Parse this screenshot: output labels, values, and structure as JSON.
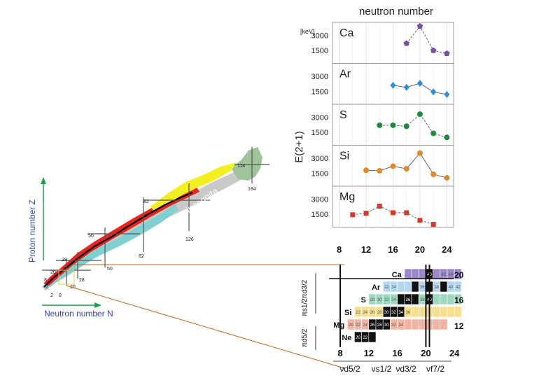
{
  "nuclide_chart": {
    "x_axis_label": "Neutron number N",
    "y_axis_label": "Proton number Z",
    "region_label": "terra incognita",
    "magic_numbers": [
      "2",
      "8",
      "20",
      "28",
      "50",
      "82",
      "126",
      "184",
      "114"
    ],
    "colors": {
      "stable": "#000000",
      "red_region": "#e8251d",
      "yellow_region": "#f4ef20",
      "cyan_region": "#7fd1d1",
      "gray_region": "#bfbfbf",
      "green_region": "#9fc49a",
      "blue_outline": "#7887c0",
      "axis_arrow": "#1aa04a",
      "zoom_line": "#c0651a"
    }
  },
  "chart_data": {
    "type": "scatter",
    "title": "neutron number",
    "ylabel": "E(2+1)",
    "yunit": "[keV]",
    "x_ticks": [
      8,
      12,
      16,
      20,
      24
    ],
    "xlim": [
      7,
      25
    ],
    "ylim": [
      500,
      4000
    ],
    "y_ticks": [
      "3000",
      "1500"
    ],
    "series": [
      {
        "name": "Ca",
        "marker": "pentagon",
        "color": "#7a4ea3",
        "dashed": true,
        "x": [
          18,
          20,
          22,
          24
        ],
        "y": [
          2200,
          3900,
          1500,
          1200
        ]
      },
      {
        "name": "Ar",
        "marker": "diamond",
        "color": "#2a8fd6",
        "dashed": false,
        "x": [
          16,
          18,
          20,
          22,
          24
        ],
        "y": [
          2100,
          1900,
          2300,
          1450,
          1200
        ]
      },
      {
        "name": "S",
        "marker": "circle",
        "color": "#1e8b3e",
        "dashed": true,
        "x": [
          14,
          16,
          18,
          20,
          22,
          24
        ],
        "y": [
          2200,
          2200,
          2100,
          3300,
          1400,
          1000
        ]
      },
      {
        "name": "Si",
        "marker": "circle",
        "color": "#e08a2a",
        "dashed": false,
        "x": [
          12,
          14,
          16,
          18,
          20,
          22,
          24
        ],
        "y": [
          1800,
          1750,
          2200,
          1950,
          3500,
          1400,
          1050
        ]
      },
      {
        "name": "Mg",
        "marker": "square",
        "color": "#d63a26",
        "dashed": true,
        "x": [
          10,
          12,
          14,
          16,
          18,
          20,
          22
        ],
        "y": [
          1450,
          1600,
          2300,
          1650,
          1650,
          900,
          500
        ]
      }
    ]
  },
  "zoom": {
    "x_ticks": [
      "8",
      "12",
      "16",
      "20",
      "24"
    ],
    "right_labels": [
      "20",
      "16",
      "12"
    ],
    "left_pi_label": "πs1/2πd3/2",
    "left_pi2_label": "πd5/2",
    "nu_labels": [
      "νd5/2",
      "νs1/2",
      "νd3/2",
      "νf7/2"
    ],
    "rows": [
      {
        "el": "Ca",
        "color": "#9b87c9",
        "start": 17,
        "end": 24,
        "cells": [
          "",
          "",
          "",
          "40",
          "",
          "42",
          "44"
        ],
        "stable": [
          20
        ]
      },
      {
        "el": "Ar",
        "color": "#b4d6ef",
        "start": 14,
        "end": 24,
        "cells": [
          "32",
          "34",
          "",
          "",
          "",
          "36",
          "",
          "38",
          "",
          "40",
          "42"
        ],
        "stable": [
          18,
          20,
          22
        ]
      },
      {
        "el": "S",
        "color": "#9ed8bf",
        "start": 12,
        "end": 24,
        "cells": [
          "28",
          "30",
          "32",
          "34",
          "",
          "36",
          "",
          "38",
          "40"
        ],
        "stable": [
          16,
          17,
          18,
          20
        ]
      },
      {
        "el": "Si",
        "color": "#f6df8e",
        "start": 10,
        "end": 24,
        "cells": [
          "22",
          "24",
          "26",
          "28",
          "30",
          "32",
          "34",
          "36"
        ],
        "stable": [
          14,
          15,
          16
        ]
      },
      {
        "el": "Mg",
        "color": "#f3b3a2",
        "start": 9,
        "end": 22,
        "cells": [
          "20",
          "22",
          "24",
          "26",
          "28",
          "30",
          "32",
          "34"
        ],
        "stable": [
          12,
          13,
          14
        ]
      },
      {
        "el": "Ne",
        "color": "#ffffff",
        "start": 10,
        "end": 12,
        "cells": [
          "20",
          "22"
        ],
        "stable": [
          10,
          11,
          12
        ]
      }
    ]
  }
}
